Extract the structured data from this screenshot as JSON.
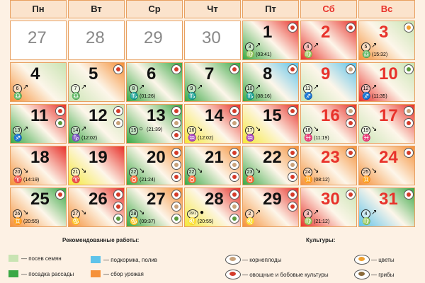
{
  "weekdays": [
    "Пн",
    "Вт",
    "Ср",
    "Чт",
    "Пт",
    "Сб",
    "Вс"
  ],
  "weeks": [
    [
      {
        "day": 27
      },
      {
        "day": 28
      },
      {
        "day": 29
      },
      {
        "day": 30
      },
      {
        "day": 1,
        "lunar_day": 3,
        "arrow": "↗",
        "sign": "♍",
        "time": "(03:41)"
      },
      {
        "day": 2,
        "lunar_day": 4,
        "arrow": "↗",
        "sign": "♍"
      },
      {
        "day": 3,
        "lunar_day": 5,
        "arrow": "↗",
        "sign": "♎",
        "time": "(15:32)"
      }
    ],
    [
      {
        "day": 4,
        "lunar_day": 6,
        "arrow": "↗",
        "sign": "♎"
      },
      {
        "day": 5,
        "lunar_day": 7,
        "arrow": "↗",
        "sign": "♎"
      },
      {
        "day": 6,
        "lunar_day": 8,
        "arrow": "↗",
        "sign": "♏",
        "time": "(01:26)"
      },
      {
        "day": 7,
        "lunar_day": 9,
        "arrow": "↗",
        "sign": "♏"
      },
      {
        "day": 8,
        "lunar_day": 10,
        "arrow": "↗",
        "sign": "♏",
        "time": "(08:16)"
      },
      {
        "day": 9,
        "lunar_day": 11,
        "arrow": "↗",
        "sign": "♐"
      },
      {
        "day": 10,
        "lunar_day": 12,
        "arrow": "↗",
        "sign": "♐",
        "time": "(11:35)"
      }
    ],
    [
      {
        "day": 11,
        "lunar_day": 13,
        "arrow": "↗",
        "sign": "♐"
      },
      {
        "day": 12,
        "lunar_day": 14,
        "arrow": "↗",
        "sign": "♑",
        "time": "(12:02)"
      },
      {
        "day": 13,
        "lunar_day": 15,
        "arrow": "○",
        "time": "(21:39)"
      },
      {
        "day": 14,
        "lunar_day": 16,
        "arrow": "↘",
        "sign": "♒",
        "time": "(12:02)"
      },
      {
        "day": 15,
        "lunar_day": 17,
        "arrow": "↘",
        "sign": "♒"
      },
      {
        "day": 16,
        "lunar_day": 18,
        "arrow": "↘",
        "sign": "♓",
        "time": "(11:19)"
      },
      {
        "day": 17,
        "lunar_day": 19,
        "arrow": "↘",
        "sign": "♓"
      }
    ],
    [
      {
        "day": 18,
        "lunar_day": 20,
        "arrow": "↘",
        "sign": "♈",
        "time": "(14:19)"
      },
      {
        "day": 19,
        "lunar_day": 21,
        "arrow": "↘",
        "sign": "♈"
      },
      {
        "day": 20,
        "lunar_day": 22,
        "arrow": "↘",
        "sign": "♉",
        "time": "(21:24)"
      },
      {
        "day": 21,
        "lunar_day": 22,
        "arrow": "↘",
        "sign": "♉"
      },
      {
        "day": 22,
        "lunar_day": 23,
        "arrow": "↘",
        "sign": "♉"
      },
      {
        "day": 23,
        "lunar_day": 24,
        "arrow": "↘",
        "sign": "♊",
        "time": "(08:12)"
      },
      {
        "day": 24,
        "lunar_day": 25,
        "arrow": "↘",
        "sign": "♊"
      }
    ],
    [
      {
        "day": 25,
        "lunar_day": 26,
        "arrow": "↘",
        "sign": "♊",
        "time": "(20:55)"
      },
      {
        "day": 26,
        "lunar_day": 27,
        "arrow": "↘",
        "sign": "♋"
      },
      {
        "day": 27,
        "lunar_day": 28,
        "arrow": "↘",
        "sign": "♋",
        "time": "(09:37)"
      },
      {
        "day": 28,
        "lunar_day": "29/1",
        "arrow": "●",
        "sign": "♌",
        "time": "(20:55)"
      },
      {
        "day": 29,
        "lunar_day": 2,
        "arrow": "↗",
        "sign": "♌"
      },
      {
        "day": 30,
        "lunar_day": 3,
        "arrow": "↗",
        "sign": "♍",
        "time": "(21:12)"
      },
      {
        "day": 31,
        "lunar_day": 4,
        "arrow": "↗",
        "sign": "♍"
      }
    ]
  ],
  "legend": {
    "works_title": "Рекомендованные работы:",
    "works": [
      "— посев семян",
      "— посадка рассады",
      "— подкормка, полив",
      "— сбор урожая"
    ],
    "crops_title": "Культуры:",
    "crops": [
      "— корнеплоды",
      "— овощные и бобовые культуры",
      "— цветы",
      "— грибы"
    ]
  }
}
